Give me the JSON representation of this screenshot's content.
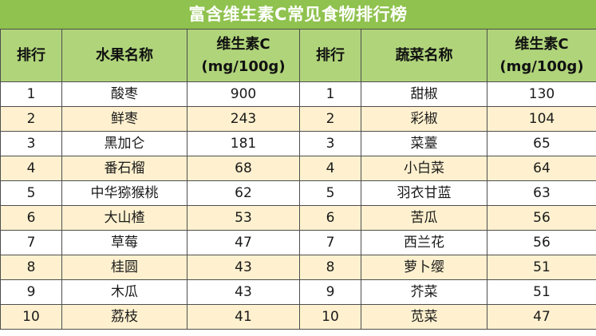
{
  "title": "富含维生素C常见食物排行榜",
  "headers": {
    "rank": "排行",
    "fruit_name": "水果名称",
    "vitamin_line1": "维生素C",
    "vitamin_line2": "(mg/100g)",
    "veg_name": "蔬菜名称"
  },
  "rows": [
    {
      "rank": "1",
      "fruit": "酸枣",
      "fruit_vc": "900",
      "veg_rank": "1",
      "veg": "甜椒",
      "veg_vc": "130"
    },
    {
      "rank": "2",
      "fruit": "鲜枣",
      "fruit_vc": "243",
      "veg_rank": "2",
      "veg": "彩椒",
      "veg_vc": "104"
    },
    {
      "rank": "3",
      "fruit": "黑加仑",
      "fruit_vc": "181",
      "veg_rank": "3",
      "veg": "菜薹",
      "veg_vc": "65"
    },
    {
      "rank": "4",
      "fruit": "番石榴",
      "fruit_vc": "68",
      "veg_rank": "4",
      "veg": "小白菜",
      "veg_vc": "64"
    },
    {
      "rank": "5",
      "fruit": "中华猕猴桃",
      "fruit_vc": "62",
      "veg_rank": "5",
      "veg": "羽衣甘蓝",
      "veg_vc": "63"
    },
    {
      "rank": "6",
      "fruit": "大山楂",
      "fruit_vc": "53",
      "veg_rank": "6",
      "veg": "苦瓜",
      "veg_vc": "56"
    },
    {
      "rank": "7",
      "fruit": "草莓",
      "fruit_vc": "47",
      "veg_rank": "7",
      "veg": "西兰花",
      "veg_vc": "56"
    },
    {
      "rank": "8",
      "fruit": "桂圆",
      "fruit_vc": "43",
      "veg_rank": "8",
      "veg": "萝卜缨",
      "veg_vc": "51"
    },
    {
      "rank": "9",
      "fruit": "木瓜",
      "fruit_vc": "43",
      "veg_rank": "9",
      "veg": "芥菜",
      "veg_vc": "51"
    },
    {
      "rank": "10",
      "fruit": "荔枝",
      "fruit_vc": "41",
      "veg_rank": "10",
      "veg": "苋菜",
      "veg_vc": "47"
    }
  ],
  "colors": {
    "title_bg": "#8fc24e",
    "header_bg": "#b0d47a",
    "row_alt_bg": "#fff1cf"
  }
}
